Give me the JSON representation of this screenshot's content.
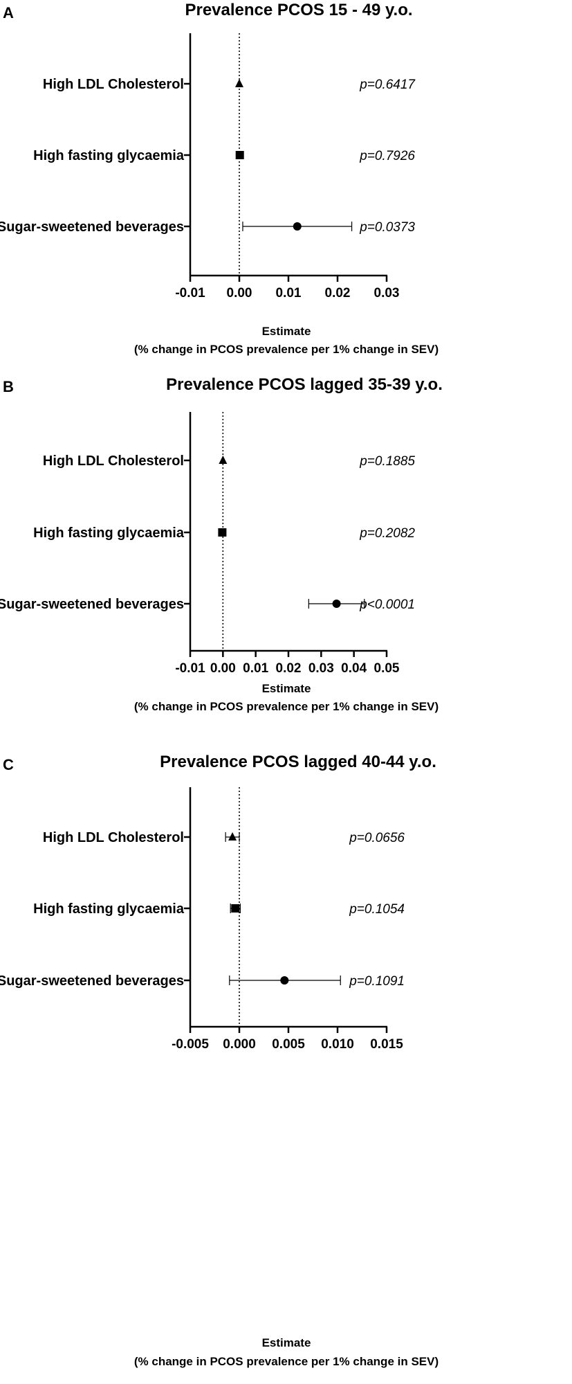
{
  "chart_data": [
    {
      "type": "forest",
      "panel": "A",
      "title": "Prevalence PCOS 15 - 49 y.o.",
      "xlabel": "Estimate",
      "xlabel2": "(% change in PCOS prevalence per 1% change in SEV)",
      "xlim": [
        -0.01,
        0.03
      ],
      "xticks": [
        "-0.01",
        "0.00",
        "0.01",
        "0.02",
        "0.03"
      ],
      "xtick_values": [
        -0.01,
        0.0,
        0.01,
        0.02,
        0.03
      ],
      "reference_line": 0,
      "rows": [
        {
          "label": "High LDL Cholesterol",
          "estimate": 0.0,
          "ci_low": 0.0,
          "ci_high": 0.0,
          "marker": "triangle",
          "p": "p=0.6417"
        },
        {
          "label": "High fasting glycaemia",
          "estimate": 0.0001,
          "ci_low": 0.0001,
          "ci_high": 0.0001,
          "marker": "square",
          "p": "p=0.7926"
        },
        {
          "label": "Sugar-sweetened beverages",
          "estimate": 0.0118,
          "ci_low": 0.0007,
          "ci_high": 0.0229,
          "marker": "circle",
          "p": "p=0.0373"
        }
      ]
    },
    {
      "type": "forest",
      "panel": "B",
      "title": "Prevalence PCOS lagged 35-39 y.o.",
      "xlabel": "Estimate",
      "xlabel2": "(% change in PCOS prevalence per 1% change in SEV)",
      "xlim": [
        -0.01,
        0.05
      ],
      "xticks": [
        "-0.01",
        "0.00",
        "0.01",
        "0.02",
        "0.03",
        "0.04",
        "0.05"
      ],
      "xtick_values": [
        -0.01,
        0.0,
        0.01,
        0.02,
        0.03,
        0.04,
        0.05
      ],
      "reference_line": 0,
      "rows": [
        {
          "label": "High LDL Cholesterol",
          "estimate": 0.0,
          "ci_low": 0.0,
          "ci_high": 0.0,
          "marker": "triangle",
          "p": "p=0.1885"
        },
        {
          "label": "High fasting glycaemia",
          "estimate": -0.0002,
          "ci_low": -0.0002,
          "ci_high": -0.0002,
          "marker": "square",
          "p": "p=0.2082"
        },
        {
          "label": "Sugar-sweetened beverages",
          "estimate": 0.0347,
          "ci_low": 0.0262,
          "ci_high": 0.0432,
          "marker": "circle",
          "p": "p<0.0001"
        }
      ]
    },
    {
      "type": "forest",
      "panel": "C",
      "title": "Prevalence PCOS lagged 40-44 y.o.",
      "xlabel": "Estimate",
      "xlabel2": "(% change in PCOS prevalence per 1% change in SEV)",
      "xlim": [
        -0.005,
        0.015
      ],
      "xticks": [
        "-0.005",
        "0.000",
        "0.005",
        "0.010",
        "0.015"
      ],
      "xtick_values": [
        -0.005,
        0.0,
        0.005,
        0.01,
        0.015
      ],
      "reference_line": 0,
      "rows": [
        {
          "label": "High LDL Cholesterol",
          "estimate": -0.0007,
          "ci_low": -0.0014,
          "ci_high": 0.0,
          "marker": "triangle",
          "p": "p=0.0656"
        },
        {
          "label": "High fasting glycaemia",
          "estimate": -0.0004,
          "ci_low": -0.0009,
          "ci_high": 0.0001,
          "marker": "square",
          "p": "p=0.1054"
        },
        {
          "label": "Sugar-sweetened beverages",
          "estimate": 0.0046,
          "ci_low": -0.001,
          "ci_high": 0.0103,
          "marker": "circle",
          "p": "p=0.1091"
        }
      ]
    }
  ]
}
